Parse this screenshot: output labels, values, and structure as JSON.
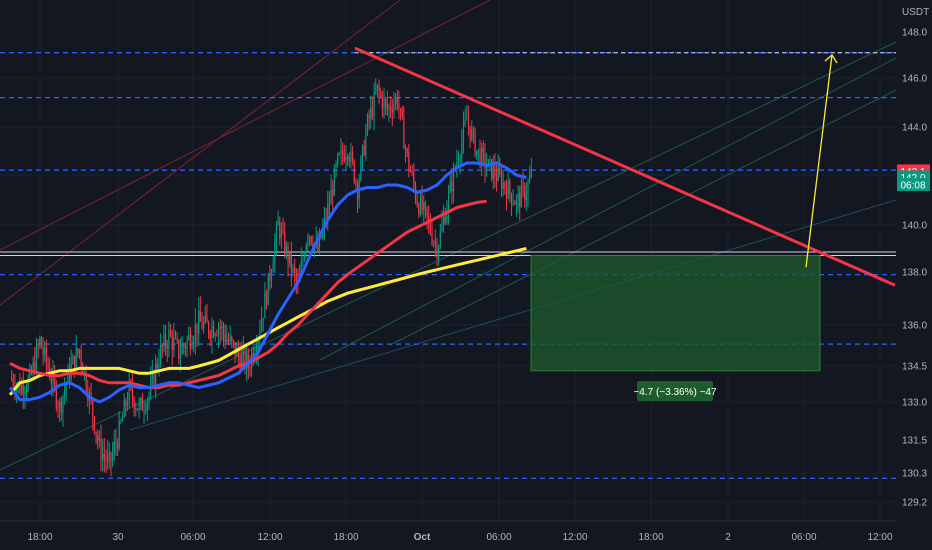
{
  "chart_data": {
    "type": "candlestick",
    "currency_label": "USDT",
    "x_ticks": [
      "18:00",
      "30",
      "06:00",
      "12:00",
      "18:00",
      "Oct",
      "06:00",
      "12:00",
      "18:00",
      "2",
      "06:00",
      "12:00"
    ],
    "y_ticks": [
      "148.0",
      "146.0",
      "144.0",
      "142.0",
      "140.0",
      "138.0",
      "136.0",
      "134.5",
      "133.0",
      "131.5",
      "130.3",
      "129.2"
    ],
    "ylim": [
      128.7,
      149.0
    ],
    "price_tags": [
      {
        "id": "tag1",
        "text": "142.1",
        "price": 142.15,
        "color": "#f23645"
      },
      {
        "id": "tag2",
        "text": "142.0",
        "price": 141.9,
        "color": "#089981"
      },
      {
        "id": "tag3",
        "text": "06:08",
        "price": 141.6,
        "color": "#089981"
      }
    ],
    "measure_label": "−4.7 (−3.36%) −47",
    "horizontal_levels": [
      147.1,
      145.2,
      142.2,
      137.9,
      135.3,
      130.1
    ],
    "support_lines": [
      138.85,
      138.7
    ],
    "candles_count": 140,
    "close_path": [
      [
        0,
        134.0
      ],
      [
        6,
        133.6
      ],
      [
        12,
        133.9
      ],
      [
        18,
        135.4
      ],
      [
        24,
        134.2
      ],
      [
        30,
        132.8
      ],
      [
        36,
        134.3
      ],
      [
        42,
        135.1
      ],
      [
        48,
        133.2
      ],
      [
        54,
        131.2
      ],
      [
        60,
        130.6
      ],
      [
        66,
        131.8
      ],
      [
        72,
        133.5
      ],
      [
        78,
        132.7
      ],
      [
        84,
        133.3
      ],
      [
        90,
        134.9
      ],
      [
        96,
        135.6
      ],
      [
        102,
        135.0
      ],
      [
        108,
        135.5
      ],
      [
        114,
        136.1
      ],
      [
        120,
        135.9
      ],
      [
        126,
        136.0
      ],
      [
        132,
        135.4
      ],
      [
        138,
        134.9
      ],
      [
        144,
        134.5
      ],
      [
        150,
        135.7
      ],
      [
        156,
        137.5
      ],
      [
        162,
        140.0
      ],
      [
        168,
        138.6
      ],
      [
        174,
        137.4
      ],
      [
        180,
        139.8
      ],
      [
        186,
        138.9
      ],
      [
        192,
        140.6
      ],
      [
        198,
        142.5
      ],
      [
        204,
        143.2
      ],
      [
        210,
        141.5
      ],
      [
        216,
        144.1
      ],
      [
        222,
        145.5
      ],
      [
        228,
        144.7
      ],
      [
        234,
        145.2
      ],
      [
        240,
        142.7
      ],
      [
        246,
        141.0
      ],
      [
        252,
        140.2
      ],
      [
        258,
        139.0
      ],
      [
        264,
        140.8
      ],
      [
        270,
        142.6
      ],
      [
        276,
        144.3
      ],
      [
        282,
        143.0
      ],
      [
        288,
        142.4
      ],
      [
        294,
        142.0
      ],
      [
        300,
        141.5
      ],
      [
        306,
        140.9
      ],
      [
        312,
        141.4
      ],
      [
        315,
        142.0
      ]
    ],
    "ma_blue": [
      [
        0,
        133.6
      ],
      [
        6,
        133.1
      ],
      [
        12,
        133.1
      ],
      [
        18,
        133.2
      ],
      [
        24,
        133.4
      ],
      [
        30,
        133.7
      ],
      [
        36,
        133.8
      ],
      [
        42,
        133.6
      ],
      [
        48,
        133.2
      ],
      [
        54,
        133.0
      ],
      [
        60,
        133.2
      ],
      [
        66,
        133.5
      ],
      [
        72,
        133.7
      ],
      [
        78,
        133.6
      ],
      [
        84,
        133.6
      ],
      [
        90,
        133.7
      ],
      [
        96,
        133.8
      ],
      [
        102,
        133.8
      ],
      [
        108,
        133.7
      ],
      [
        114,
        133.6
      ],
      [
        120,
        133.7
      ],
      [
        126,
        133.8
      ],
      [
        132,
        134.0
      ],
      [
        138,
        134.2
      ],
      [
        144,
        134.6
      ],
      [
        150,
        135.0
      ],
      [
        156,
        135.7
      ],
      [
        162,
        136.4
      ],
      [
        168,
        137.0
      ],
      [
        174,
        137.6
      ],
      [
        180,
        138.5
      ],
      [
        186,
        139.4
      ],
      [
        192,
        140.2
      ],
      [
        198,
        140.8
      ],
      [
        204,
        141.2
      ],
      [
        210,
        141.4
      ],
      [
        216,
        141.5
      ],
      [
        222,
        141.5
      ],
      [
        228,
        141.6
      ],
      [
        234,
        141.6
      ],
      [
        240,
        141.5
      ],
      [
        246,
        141.3
      ],
      [
        252,
        141.4
      ],
      [
        258,
        141.6
      ],
      [
        264,
        142.0
      ],
      [
        270,
        142.3
      ],
      [
        276,
        142.5
      ],
      [
        282,
        142.5
      ],
      [
        288,
        142.4
      ],
      [
        294,
        142.5
      ],
      [
        300,
        142.3
      ],
      [
        306,
        142.0
      ],
      [
        312,
        141.9
      ]
    ],
    "ma_red": [
      [
        0,
        134.6
      ],
      [
        6,
        134.4
      ],
      [
        12,
        134.3
      ],
      [
        18,
        134.2
      ],
      [
        24,
        134.1
      ],
      [
        30,
        134.1
      ],
      [
        36,
        134.2
      ],
      [
        42,
        134.2
      ],
      [
        48,
        134.1
      ],
      [
        54,
        133.9
      ],
      [
        60,
        133.8
      ],
      [
        66,
        133.8
      ],
      [
        72,
        133.8
      ],
      [
        78,
        133.7
      ],
      [
        84,
        133.6
      ],
      [
        90,
        133.6
      ],
      [
        96,
        133.7
      ],
      [
        102,
        133.7
      ],
      [
        108,
        133.8
      ],
      [
        114,
        133.9
      ],
      [
        120,
        134.0
      ],
      [
        126,
        134.1
      ],
      [
        132,
        134.3
      ],
      [
        138,
        134.5
      ],
      [
        144,
        134.6
      ],
      [
        150,
        134.8
      ],
      [
        156,
        135.0
      ],
      [
        162,
        135.3
      ],
      [
        168,
        135.7
      ],
      [
        174,
        136.0
      ],
      [
        180,
        136.4
      ],
      [
        186,
        136.8
      ],
      [
        192,
        137.2
      ],
      [
        198,
        137.6
      ],
      [
        204,
        137.9
      ],
      [
        210,
        138.2
      ],
      [
        216,
        138.5
      ],
      [
        222,
        138.8
      ],
      [
        228,
        139.1
      ],
      [
        234,
        139.4
      ],
      [
        240,
        139.7
      ],
      [
        246,
        139.9
      ],
      [
        252,
        140.1
      ],
      [
        258,
        140.3
      ],
      [
        264,
        140.5
      ],
      [
        270,
        140.7
      ],
      [
        276,
        140.8
      ],
      [
        282,
        140.9
      ],
      [
        288,
        140.95
      ]
    ],
    "ma_yellow": [
      [
        0,
        133.3
      ],
      [
        6,
        133.8
      ],
      [
        12,
        133.9
      ],
      [
        18,
        134.1
      ],
      [
        24,
        134.2
      ],
      [
        30,
        134.3
      ],
      [
        36,
        134.3
      ],
      [
        42,
        134.4
      ],
      [
        48,
        134.4
      ],
      [
        54,
        134.4
      ],
      [
        60,
        134.4
      ],
      [
        66,
        134.4
      ],
      [
        72,
        134.3
      ],
      [
        78,
        134.2
      ],
      [
        84,
        134.2
      ],
      [
        90,
        134.3
      ],
      [
        96,
        134.4
      ],
      [
        102,
        134.4
      ],
      [
        108,
        134.4
      ],
      [
        114,
        134.5
      ],
      [
        120,
        134.6
      ],
      [
        126,
        134.7
      ],
      [
        132,
        134.9
      ],
      [
        138,
        135.1
      ],
      [
        144,
        135.3
      ],
      [
        150,
        135.5
      ],
      [
        156,
        135.7
      ],
      [
        162,
        135.9
      ],
      [
        168,
        136.1
      ],
      [
        174,
        136.3
      ],
      [
        180,
        136.5
      ],
      [
        186,
        136.7
      ],
      [
        192,
        136.9
      ],
      [
        198,
        137.05
      ],
      [
        204,
        137.2
      ],
      [
        210,
        137.3
      ],
      [
        216,
        137.4
      ],
      [
        222,
        137.5
      ],
      [
        228,
        137.6
      ],
      [
        234,
        137.7
      ],
      [
        240,
        137.8
      ],
      [
        246,
        137.9
      ],
      [
        252,
        138.0
      ],
      [
        258,
        138.1
      ],
      [
        264,
        138.2
      ],
      [
        270,
        138.3
      ],
      [
        276,
        138.4
      ],
      [
        282,
        138.5
      ],
      [
        288,
        138.6
      ],
      [
        294,
        138.7
      ],
      [
        300,
        138.8
      ],
      [
        306,
        138.9
      ],
      [
        312,
        139.0
      ]
    ],
    "trend_line": {
      "from": [
        355,
        147.3
      ],
      "to": [
        895,
        137.5
      ],
      "color": "#f23645"
    },
    "top_dashed_white": 147.1,
    "measure_box": {
      "x1": 531,
      "x2": 820,
      "top": 138.7,
      "bottom": 134.3,
      "color": "#1e5c2c"
    },
    "arrow": {
      "from": [
        806,
        138.2
      ],
      "to": [
        832,
        147.0
      ],
      "color": "#ffeb3b"
    }
  }
}
